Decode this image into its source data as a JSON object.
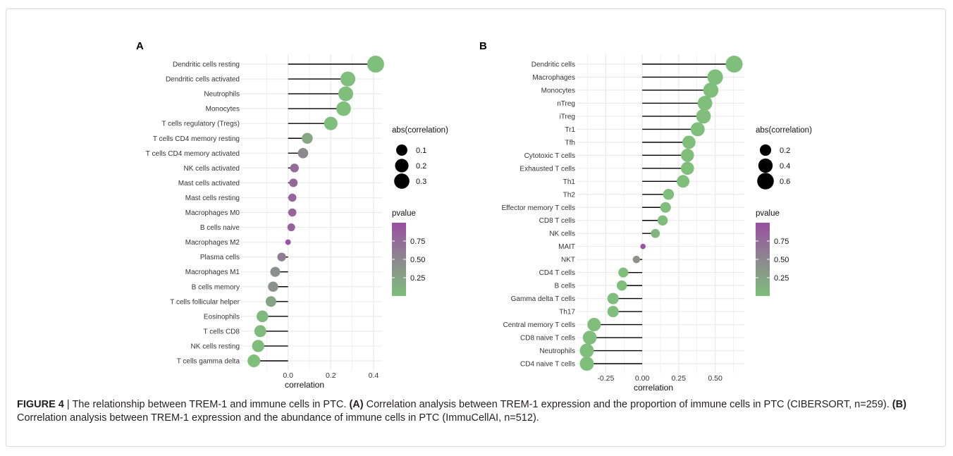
{
  "chart_data": [
    {
      "type": "lollipop",
      "panel_label": "A",
      "xlabel": "correlation",
      "xlim": [
        -0.22,
        0.44
      ],
      "xticks": [
        0.0,
        0.2,
        0.4
      ],
      "xtick_labels": [
        "0.0",
        "0.2",
        "0.4"
      ],
      "grid": true,
      "categories": [
        "Dendritic cells resting",
        "Dendritic cells activated",
        "Neutrophils",
        "Monocytes",
        "T cells regulatory (Tregs)",
        "T cells CD4 memory resting",
        "T cells CD4 memory activated",
        "NK cells activated",
        "Mast cells activated",
        "Mast cells resting",
        "Macrophages M0",
        "B cells naive",
        "Macrophages M2",
        "Plasma cells",
        "Macrophages M1",
        "B cells memory",
        "T cells follicular helper",
        "Eosinophils",
        "T cells CD8",
        "NK cells resting",
        "T cells gamma delta"
      ],
      "values": [
        0.41,
        0.28,
        0.27,
        0.26,
        0.2,
        0.09,
        0.07,
        0.03,
        0.025,
        0.02,
        0.02,
        0.015,
        0.0,
        -0.03,
        -0.06,
        -0.07,
        -0.08,
        -0.12,
        -0.13,
        -0.14,
        -0.16
      ],
      "pvalues": [
        0.0,
        0.0,
        0.0,
        0.0,
        0.0,
        0.2,
        0.5,
        0.75,
        0.8,
        0.8,
        0.8,
        0.8,
        0.95,
        0.6,
        0.45,
        0.4,
        0.25,
        0.05,
        0.04,
        0.03,
        0.01
      ],
      "legend_size": {
        "title": "abs(correlation)",
        "items": [
          {
            "label": "0.1",
            "value": 0.1
          },
          {
            "label": "0.2",
            "value": 0.2
          },
          {
            "label": "0.3",
            "value": 0.3
          }
        ]
      },
      "legend_color": {
        "title": "pvalue",
        "ticks": [
          "0.75",
          "0.50",
          "0.25"
        ],
        "tick_values": [
          0.75,
          0.5,
          0.25
        ],
        "range": [
          0,
          1
        ]
      }
    },
    {
      "type": "lollipop",
      "panel_label": "B",
      "xlabel": "correlation",
      "xlim": [
        -0.45,
        0.7
      ],
      "xticks": [
        -0.25,
        0.0,
        0.25,
        0.5
      ],
      "xtick_labels": [
        "-0.25",
        "0.00",
        "0.25",
        "0.50"
      ],
      "grid": true,
      "categories": [
        "Dendritic cells",
        "Macrophages",
        "Monocytes",
        "nTreg",
        "iTreg",
        "Tr1",
        "Tfh",
        "Cytotoxic T cells",
        "Exhausted T cells",
        "Th1",
        "Th2",
        "Effector memory T cells",
        "CD8 T cells",
        "NK cells",
        "MAIT",
        "NKT",
        "CD4 T cells",
        "B cells",
        "Gamma delta T cells",
        "Th17",
        "Central memory T cells",
        "CD8 naive T cells",
        "Neutrophils",
        "CD4 naive T cells"
      ],
      "values": [
        0.63,
        0.5,
        0.47,
        0.43,
        0.42,
        0.38,
        0.32,
        0.31,
        0.31,
        0.28,
        0.18,
        0.16,
        0.14,
        0.09,
        0.005,
        -0.04,
        -0.13,
        -0.14,
        -0.2,
        -0.2,
        -0.33,
        -0.36,
        -0.38,
        -0.38
      ],
      "pvalues": [
        0.0,
        0.0,
        0.0,
        0.0,
        0.0,
        0.0,
        0.0,
        0.0,
        0.0,
        0.0,
        0.0,
        0.0,
        0.02,
        0.1,
        0.98,
        0.4,
        0.01,
        0.01,
        0.0,
        0.0,
        0.0,
        0.0,
        0.0,
        0.0
      ],
      "legend_size": {
        "title": "abs(correlation)",
        "items": [
          {
            "label": "0.2",
            "value": 0.2
          },
          {
            "label": "0.4",
            "value": 0.4
          },
          {
            "label": "0.6",
            "value": 0.6
          }
        ]
      },
      "legend_color": {
        "title": "pvalue",
        "ticks": [
          "0.75",
          "0.50",
          "0.25"
        ],
        "tick_values": [
          0.75,
          0.5,
          0.25
        ],
        "range": [
          0,
          1
        ]
      }
    }
  ],
  "caption": {
    "figure": "FIGURE 4",
    "sep": " | ",
    "text1": "The relationship between TREM-1 and immune cells in PTC. ",
    "labelA": "(A)",
    "text2": " Correlation analysis between TREM-1 expression and the proportion of immune cells in PTC (CIBERSORT, n=259). ",
    "labelB": "(B)",
    "text3": " Correlation analysis between TREM-1 expression and the abundance of immune cells in PTC (ImmuCellAI, n=512)."
  },
  "colors": {
    "low_p": "#7fbf7b",
    "high_p": "#9b4fa3",
    "grid": "#ebebeb",
    "stem": "#000000"
  }
}
